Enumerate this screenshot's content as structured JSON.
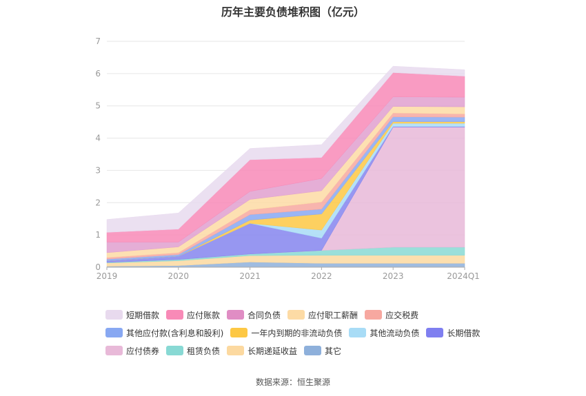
{
  "chart_data": {
    "type": "area",
    "stacked": true,
    "title": "历年主要负债堆积图（亿元）",
    "categories": [
      "2019",
      "2020",
      "2021",
      "2022",
      "2023",
      "2024Q1"
    ],
    "ylim": [
      0,
      7
    ],
    "yticks": [
      0,
      1,
      2,
      3,
      4,
      5,
      6,
      7
    ],
    "grid": true,
    "legend_position": "bottom",
    "series": [
      {
        "name": "其它",
        "color": "#8eb0db",
        "values": [
          0.03,
          0.05,
          0.16,
          0.12,
          0.12,
          0.12
        ]
      },
      {
        "name": "长期递延收益",
        "color": "#fcd9a0",
        "values": [
          0.1,
          0.15,
          0.2,
          0.25,
          0.25,
          0.25
        ]
      },
      {
        "name": "租赁负债",
        "color": "#88d9d4",
        "values": [
          0.02,
          0.04,
          0.05,
          0.15,
          0.25,
          0.25
        ]
      },
      {
        "name": "应付债券",
        "color": "#e8b9d8",
        "values": [
          0,
          0,
          0,
          0,
          3.72,
          3.72
        ]
      },
      {
        "name": "长期借款",
        "color": "#8585ee",
        "values": [
          0.05,
          0.1,
          0.95,
          0.38,
          0.02,
          0.02
        ]
      },
      {
        "name": "其他流动负债",
        "color": "#a8dcf6",
        "values": [
          0,
          0,
          0,
          0.25,
          0.1,
          0.1
        ]
      },
      {
        "name": "一年内到期的非流动负债",
        "color": "#fdc844",
        "values": [
          0,
          0,
          0.1,
          0.5,
          0.05,
          0.05
        ]
      },
      {
        "name": "其他应付款(含利息和股利)",
        "color": "#88a8f2",
        "values": [
          0.05,
          0.05,
          0.17,
          0.15,
          0.15,
          0.14
        ]
      },
      {
        "name": "应交税费",
        "color": "#f7a8a0",
        "values": [
          0.05,
          0.06,
          0.15,
          0.22,
          0.12,
          0.1
        ]
      },
      {
        "name": "应付职工薪酬",
        "color": "#fddba5",
        "values": [
          0.15,
          0.18,
          0.32,
          0.35,
          0.2,
          0.22
        ]
      },
      {
        "name": "合同负债",
        "color": "#e0a0cf",
        "values": [
          0.33,
          0.15,
          0.25,
          0.38,
          0.3,
          0.3
        ]
      },
      {
        "name": "应付账款",
        "color": "#f88ab7",
        "values": [
          0.3,
          0.4,
          0.98,
          0.65,
          0.75,
          0.65
        ]
      },
      {
        "name": "短期借款",
        "color": "#e8daee",
        "values": [
          0.4,
          0.5,
          0.35,
          0.4,
          0.2,
          0.2
        ]
      }
    ]
  },
  "legend": {
    "items": [
      {
        "label": "短期借款",
        "color": "#e8daee"
      },
      {
        "label": "应付账款",
        "color": "#f88ab7"
      },
      {
        "label": "合同负债",
        "color": "#e08dc4"
      },
      {
        "label": "应付职工薪酬",
        "color": "#fddba5"
      },
      {
        "label": "应交税费",
        "color": "#f7a8a0"
      },
      {
        "label": "其他应付款(含利息和股利)",
        "color": "#88a8f2"
      },
      {
        "label": "一年内到期的非流动负债",
        "color": "#fdc844"
      },
      {
        "label": "其他流动负债",
        "color": "#a8dcf6"
      },
      {
        "label": "长期借款",
        "color": "#7f7ff0"
      },
      {
        "label": "应付债券",
        "color": "#e8b9d8"
      },
      {
        "label": "租赁负债",
        "color": "#88d9d4"
      },
      {
        "label": "长期递延收益",
        "color": "#fcd9a0"
      },
      {
        "label": "其它",
        "color": "#8eb0db"
      }
    ]
  },
  "footer": {
    "source": "数据来源：恒生聚源"
  }
}
